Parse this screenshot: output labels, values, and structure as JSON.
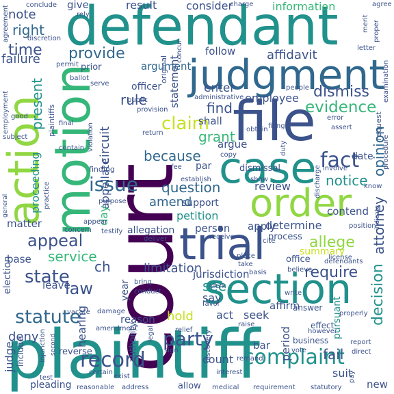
{
  "palette": {
    "dark_purple": "#440154",
    "indigo": "#3b528b",
    "blue": "#31688e",
    "teal": "#21918c",
    "green": "#35b779",
    "lime": "#90d743",
    "yellow": "#c8e020"
  },
  "words": {
    "court": "court",
    "plaintiff": "plaintiff",
    "defendant": "defendant",
    "judgment": "judgment",
    "file": "file",
    "motion": "motion",
    "action": "action",
    "case": "case",
    "order": "order",
    "trial": "trial",
    "section": "section",
    "complaint": "complaint",
    "party": "party",
    "record": "record",
    "statute": "statute",
    "state": "state",
    "appeal": "appeal",
    "issue": "issue",
    "claim": "claim",
    "fact": "fact",
    "evidence": "evidence",
    "dismiss": "dismiss",
    "notice": "notice",
    "question": "question",
    "allege": "allege",
    "require": "require",
    "law": "law",
    "service": "service",
    "provide": "provide",
    "time": "time",
    "right": "right",
    "note": "note",
    "give": "give",
    "result": "result",
    "consider": "consider",
    "information": "information",
    "affidavit": "affidavit",
    "argument": "argument",
    "follow": "follow",
    "enter": "enter",
    "find": "find",
    "rule": "rule",
    "grant": "grant",
    "because": "because",
    "opinion": "opinion",
    "attorney": "attorney",
    "decision": "decision",
    "present": "present",
    "proceeding": "proceeding",
    "circuit": "circuit",
    "appellate": "appellate",
    "employee": "employee",
    "statement": "statement",
    "officer": "officer",
    "shall": "shall",
    "argue": "argue",
    "date": "date",
    "review": "review",
    "amend": "amend",
    "petition": "petition",
    "person": "person",
    "determine": "determine",
    "apply": "apply",
    "process": "process",
    "summary": "summary",
    "office": "office",
    "limitation": "limitation",
    "jurisdiction": "jurisdiction",
    "see": "see",
    "say": "say",
    "act": "act",
    "seek": "seek",
    "affirm": "affirm",
    "hold": "hold",
    "deny": "deny",
    "reason": "reason",
    "hearing": "hearing",
    "matter": "matter",
    "base": "base",
    "leave": "leave",
    "judge": "judge",
    "election": "election",
    "count": "count",
    "fail": "fail",
    "suit": "suit",
    "period": "period",
    "pursuant": "pursuant",
    "bar": "bar",
    "new": "new",
    "contend": "contend",
    "failure": "failure",
    "year": "year",
    "day": "day",
    "ch": "ch",
    "allegation": "allegation",
    "support": "support",
    "par": "par",
    "dismissal": "dismissal",
    "conclude": "conclude",
    "rely": "rely",
    "charge": "charge",
    "agree": "agree",
    "agreement": "agreement",
    "discretion": "discretion",
    "merit": "merit",
    "proper": "proper",
    "letter": "letter",
    "permit": "permit",
    "prior": "prior",
    "ballot": "ballot",
    "serve": "serve",
    "public": "public",
    "provision": "provision",
    "original": "original",
    "administrative": "administrative",
    "concur": "concur",
    "filing": "filing",
    "people": "people",
    "examination": "examination",
    "error": "error",
    "request": "request",
    "assert": "assert",
    "procedure": "procedure",
    "employment": "employment",
    "good": "good",
    "plaintiffs": "plaintiffs",
    "subject": "subject",
    "final": "final",
    "violation": "violation",
    "contain": "contain",
    "copy": "copy",
    "obtain": "obtain",
    "duty": "duty",
    "return": "return",
    "involve": "involve",
    "discharge": "discharge",
    "finding": "finding",
    "purpose": "purpose",
    "establish": "establish",
    "fee": "fee",
    "show": "show",
    "practice": "practice",
    "general": "general",
    "know": "know",
    "concern": "concern",
    "appear": "appear",
    "testify": "testify",
    "deliver": "deliver",
    "receive": "receive",
    "cite": "cite",
    "position": "position",
    "indicate": "indicate",
    "place": "place",
    "take": "take",
    "license": "license",
    "defendants": "defendants",
    "basis": "basis",
    "believe": "believe",
    "write": "write",
    "answer": "answer",
    "bring": "bring",
    "conduct": "conduct",
    "vacate": "vacate",
    "damage": "damage",
    "amendment": "amendment",
    "clerk": "clerk",
    "favor": "favor",
    "raise": "raise",
    "relief": "relief",
    "effect": "effect",
    "properly": "properly",
    "injunction": "injunction",
    "second": "second",
    "include": "include",
    "reverse": "reverse",
    "authority": "authority",
    "legal": "legal",
    "sign": "sign",
    "discovery": "discovery",
    "remand": "remand",
    "vote": "vote",
    "business": "business",
    "however": "however",
    "report": "report",
    "direct": "direct",
    "pay": "pay",
    "test": "test",
    "certain": "certain",
    "interest": "interest",
    "exist": "exist",
    "pleading": "pleading",
    "reasonable": "reasonable",
    "address": "address",
    "allow": "allow",
    "medical": "medical",
    "requirement": "requirement",
    "statutory": "statutory"
  }
}
